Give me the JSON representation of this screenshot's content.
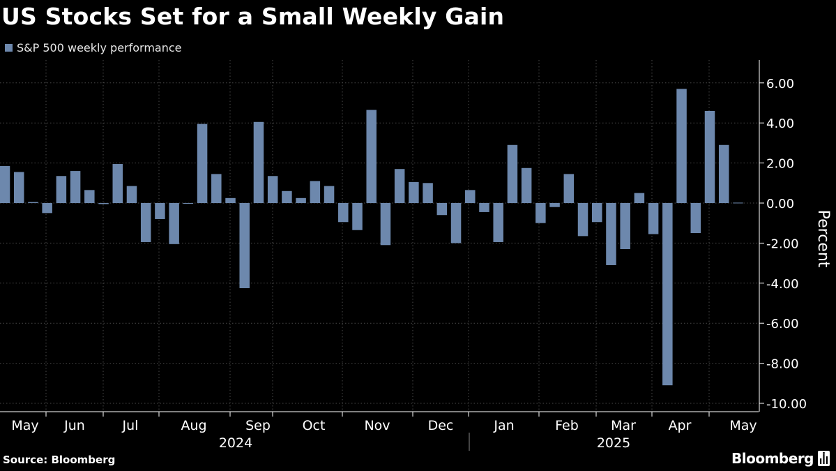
{
  "title": "US Stocks Set for a Small Weekly Gain",
  "source": "Source: Bloomberg",
  "brand": "Bloomberg",
  "colors": {
    "background": "#000000",
    "bar": "#6d88ad",
    "grid": "#4a4a4a",
    "text": "#ffffff"
  },
  "chart_data": {
    "type": "bar",
    "legend": [
      "S&P 500 weekly performance"
    ],
    "legend_position": "top-left",
    "ylabel": "Percent",
    "ylim": [
      -10.5,
      7.0
    ],
    "yticks": [
      6,
      4,
      2,
      0,
      -2,
      -4,
      -6,
      -8,
      -10
    ],
    "ytick_labels": [
      "6.00",
      "4.00",
      "2.00",
      "0.00",
      "-2.00",
      "-4.00",
      "-6.00",
      "-8.00",
      "-10.00"
    ],
    "grid": true,
    "months": [
      "May",
      "Jun",
      "Jul",
      "Aug",
      "Sep",
      "Oct",
      "Nov",
      "Dec",
      "Jan",
      "Feb",
      "Mar",
      "Apr",
      "May"
    ],
    "years": [
      "2024",
      "2025"
    ],
    "series": [
      {
        "values": [
          1.85,
          1.55,
          0.05,
          -0.5,
          1.35,
          1.6,
          0.65,
          -0.05,
          1.95,
          0.85,
          -1.95,
          -0.8,
          -2.05,
          0.0,
          3.95,
          1.45,
          0.25,
          -4.25,
          4.05,
          1.35,
          0.6,
          0.25,
          1.1,
          0.85,
          -0.95,
          -1.35,
          4.65,
          -2.1,
          1.7,
          1.05,
          1.0,
          -0.6,
          -2.0,
          0.65,
          -0.45,
          -1.95,
          2.9,
          1.75,
          -1.0,
          -0.2,
          1.45,
          -1.65,
          -0.95,
          -3.1,
          -2.3,
          0.5,
          -1.55,
          -9.1,
          5.7,
          -1.5,
          4.6,
          2.9,
          0.02
        ]
      }
    ]
  }
}
